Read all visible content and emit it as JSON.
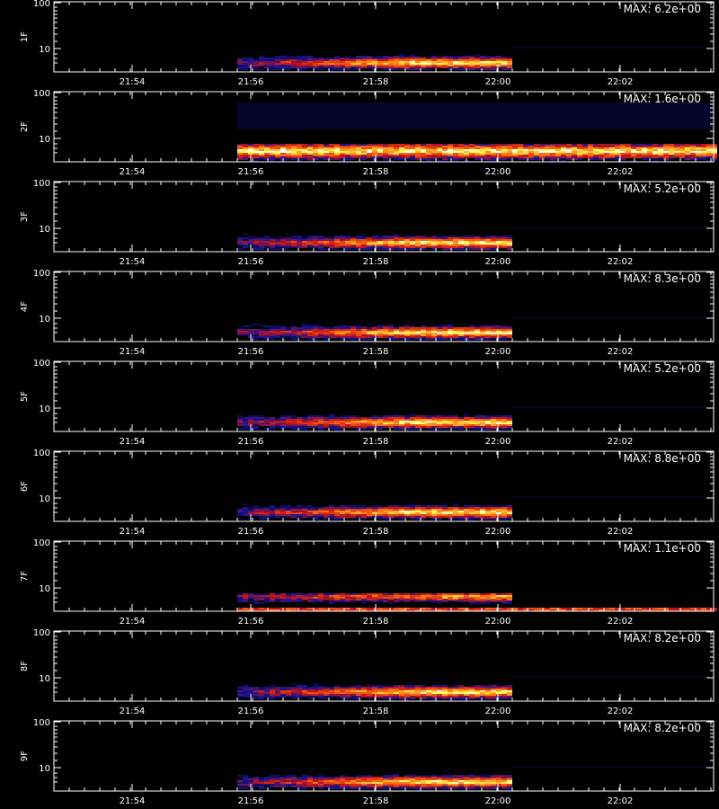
{
  "chart_data": [
    {
      "type": "heatmap",
      "ylabel": "1F",
      "max_label": "MAX: 6.2e+00",
      "profile": "short",
      "yticks": [
        "100",
        "10"
      ],
      "xticks": [
        "21:54",
        "21:56",
        "21:58",
        "22:00",
        "22:02"
      ]
    },
    {
      "type": "heatmap",
      "ylabel": "2F",
      "max_label": "MAX: 1.6e+00",
      "profile": "wide",
      "yticks": [
        "100",
        "10"
      ],
      "xticks": [
        "21:54",
        "21:56",
        "21:58",
        "22:00",
        "22:02"
      ]
    },
    {
      "type": "heatmap",
      "ylabel": "3F",
      "max_label": "MAX: 5.2e+00",
      "profile": "short",
      "yticks": [
        "100",
        "10"
      ],
      "xticks": [
        "21:54",
        "21:56",
        "21:58",
        "22:00",
        "22:02"
      ]
    },
    {
      "type": "heatmap",
      "ylabel": "4F",
      "max_label": "MAX: 8.3e+00",
      "profile": "short",
      "yticks": [
        "100",
        "10"
      ],
      "xticks": [
        "21:54",
        "21:56",
        "21:58",
        "22:00",
        "22:02"
      ]
    },
    {
      "type": "heatmap",
      "ylabel": "5F",
      "max_label": "MAX: 5.2e+00",
      "profile": "short",
      "yticks": [
        "100",
        "10"
      ],
      "xticks": [
        "21:54",
        "21:56",
        "21:58",
        "22:00",
        "22:02"
      ]
    },
    {
      "type": "heatmap",
      "ylabel": "6F",
      "max_label": "MAX: 8.8e+00",
      "profile": "short",
      "yticks": [
        "100",
        "10"
      ],
      "xticks": [
        "21:54",
        "21:56",
        "21:58",
        "22:00",
        "22:02"
      ]
    },
    {
      "type": "heatmap",
      "ylabel": "7F",
      "max_label": "MAX: 1.1e+00",
      "profile": "split",
      "yticks": [
        "100",
        "10"
      ],
      "xticks": [
        "21:54",
        "21:56",
        "21:58",
        "22:00",
        "22:02"
      ]
    },
    {
      "type": "heatmap",
      "ylabel": "8F",
      "max_label": "MAX: 8.2e+00",
      "profile": "short",
      "yticks": [
        "100",
        "10"
      ],
      "xticks": [
        "21:54",
        "21:56",
        "21:58",
        "22:00",
        "22:02"
      ]
    },
    {
      "type": "heatmap",
      "ylabel": "9F",
      "max_label": "MAX: 8.2e+00",
      "profile": "short",
      "yticks": [
        "100",
        "10"
      ],
      "xticks": [
        "21:54",
        "21:56",
        "21:58",
        "22:00",
        "22:02"
      ]
    }
  ],
  "colors": {
    "background": "#000000",
    "axis": "#ffffff",
    "low": "#1010a0",
    "mid": "#e01010",
    "high": "#ffff60",
    "peak": "#ffffff"
  }
}
